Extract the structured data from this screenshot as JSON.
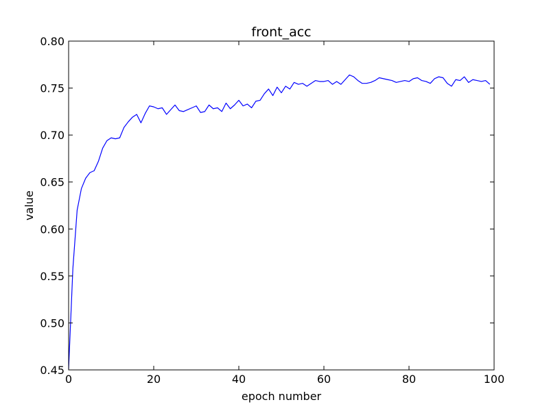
{
  "chart_data": {
    "type": "line",
    "title": "front_acc",
    "xlabel": "epoch number",
    "ylabel": "value",
    "xlim": [
      0,
      100
    ],
    "ylim": [
      0.45,
      0.8
    ],
    "grid": false,
    "legend": "none",
    "x_ticks": [
      "0",
      "20",
      "40",
      "60",
      "80",
      "100"
    ],
    "y_ticks": [
      "0.45",
      "0.50",
      "0.55",
      "0.60",
      "0.65",
      "0.70",
      "0.75",
      "0.80"
    ],
    "series": [
      {
        "color": "#0000ff",
        "x": [
          0,
          1,
          2,
          3,
          4,
          5,
          6,
          7,
          8,
          9,
          10,
          11,
          12,
          13,
          14,
          15,
          16,
          17,
          18,
          19,
          20,
          21,
          22,
          23,
          24,
          25,
          26,
          27,
          28,
          29,
          30,
          31,
          32,
          33,
          34,
          35,
          36,
          37,
          38,
          39,
          40,
          41,
          42,
          43,
          44,
          45,
          46,
          47,
          48,
          49,
          50,
          51,
          52,
          53,
          54,
          55,
          56,
          57,
          58,
          59,
          60,
          61,
          62,
          63,
          64,
          65,
          66,
          67,
          68,
          69,
          70,
          71,
          72,
          73,
          74,
          75,
          76,
          77,
          78,
          79,
          80,
          81,
          82,
          83,
          84,
          85,
          86,
          87,
          88,
          89,
          90,
          91,
          92,
          93,
          94,
          95,
          96,
          97,
          98,
          99
        ],
        "values": [
          0.451,
          0.558,
          0.62,
          0.643,
          0.654,
          0.66,
          0.662,
          0.672,
          0.686,
          0.694,
          0.697,
          0.696,
          0.697,
          0.708,
          0.714,
          0.719,
          0.722,
          0.713,
          0.723,
          0.731,
          0.73,
          0.728,
          0.729,
          0.722,
          0.727,
          0.732,
          0.726,
          0.725,
          0.727,
          0.729,
          0.731,
          0.724,
          0.725,
          0.732,
          0.728,
          0.729,
          0.725,
          0.734,
          0.728,
          0.732,
          0.737,
          0.731,
          0.733,
          0.729,
          0.736,
          0.737,
          0.744,
          0.749,
          0.742,
          0.751,
          0.745,
          0.752,
          0.749,
          0.756,
          0.754,
          0.755,
          0.752,
          0.755,
          0.758,
          0.757,
          0.757,
          0.758,
          0.754,
          0.757,
          0.754,
          0.759,
          0.764,
          0.762,
          0.758,
          0.755,
          0.755,
          0.756,
          0.758,
          0.761,
          0.76,
          0.759,
          0.758,
          0.756,
          0.757,
          0.758,
          0.757,
          0.76,
          0.761,
          0.758,
          0.757,
          0.755,
          0.76,
          0.762,
          0.761,
          0.755,
          0.752,
          0.759,
          0.758,
          0.762,
          0.756,
          0.759,
          0.758,
          0.757,
          0.758,
          0.754
        ]
      }
    ]
  }
}
